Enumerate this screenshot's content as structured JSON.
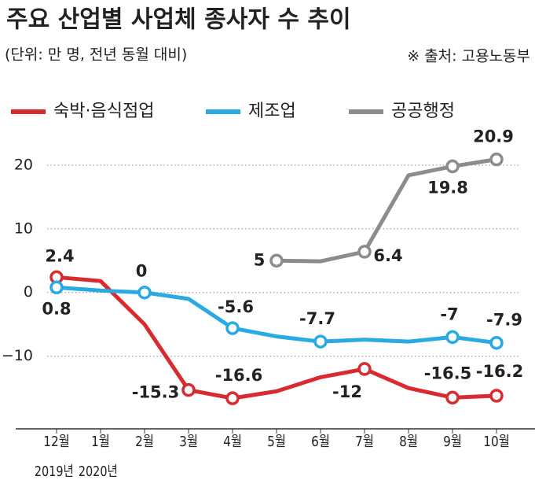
{
  "chart_data": {
    "type": "line",
    "title": "주요 산업별 사업체 종사자 수 추이",
    "subtitle": "(단위: 만 명, 전년 동월 대비)",
    "source": "※ 출처: 고용노동부",
    "categories": [
      "12월",
      "1월",
      "2월",
      "3월",
      "4월",
      "5월",
      "6월",
      "7월",
      "8월",
      "9월",
      "10월"
    ],
    "category_years": [
      "2019년",
      "2020년",
      null,
      null,
      null,
      null,
      null,
      null,
      null,
      null,
      null
    ],
    "series": [
      {
        "name": "숙박·음식점업",
        "color": "#d92b2f",
        "values": [
          2.4,
          1.8,
          -5.0,
          -15.3,
          -16.6,
          -15.5,
          -13.3,
          -12,
          -15.0,
          -16.5,
          -16.2
        ],
        "value_labels": [
          "2.4",
          null,
          null,
          "-15.3",
          "-16.6",
          null,
          null,
          "-12",
          null,
          "-16.5",
          "-16.2"
        ]
      },
      {
        "name": "제조업",
        "color": "#2aaae2",
        "values": [
          0.8,
          0.3,
          0,
          -1.0,
          -5.6,
          -6.9,
          -7.7,
          -7.4,
          -7.7,
          -7,
          -7.9
        ],
        "value_labels": [
          "0.8",
          null,
          "0",
          null,
          "-5.6",
          null,
          "-7.7",
          null,
          null,
          "-7",
          "-7.9"
        ]
      },
      {
        "name": "공공행정",
        "color": "#8c8c8c",
        "values": [
          null,
          null,
          null,
          null,
          null,
          5,
          4.9,
          6.4,
          18.4,
          19.8,
          20.9
        ],
        "value_labels": [
          null,
          null,
          null,
          null,
          null,
          "5",
          null,
          "6.4",
          null,
          "19.8",
          "20.9"
        ]
      }
    ],
    "ylim": [
      -21.4,
      24.3
    ],
    "yticks": [
      {
        "value": -10,
        "label": "−10"
      },
      0,
      10,
      20
    ],
    "grid": true
  }
}
